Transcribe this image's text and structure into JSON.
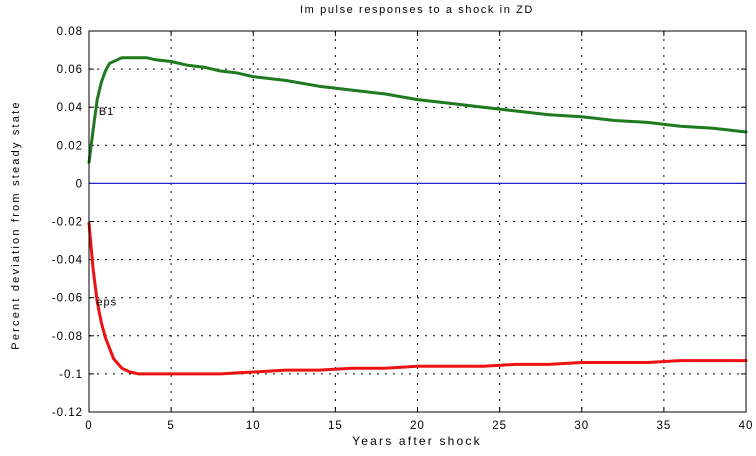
{
  "chart_data": {
    "type": "line",
    "title": "Im pulse responses to a shock in ZD",
    "xlabel": "Years after shock",
    "ylabel": "Percent deviation from steady state",
    "xlim": [
      0,
      40
    ],
    "ylim": [
      -0.12,
      0.08
    ],
    "x_ticks": [
      0,
      5,
      10,
      15,
      20,
      25,
      30,
      35,
      40
    ],
    "x_tick_labels": [
      "0",
      "5",
      "10",
      "15",
      "20",
      "25",
      "30",
      "35",
      "40"
    ],
    "y_ticks": [
      0.08,
      0.06,
      0.04,
      0.02,
      0,
      -0.02,
      -0.04,
      -0.06,
      -0.08,
      -0.1,
      -0.12
    ],
    "y_tick_labels": [
      "0.08",
      "0.06",
      "0.04",
      "0.02",
      "0",
      "-0.02",
      "-0.04",
      "-0.06",
      "-0.08",
      "-0.1",
      "-0.12"
    ],
    "grid": true,
    "colors": {
      "B1": "#1f7a1f",
      "eps": "#ee1111",
      "zero": "#2222cc",
      "grid": "#000000"
    },
    "series": [
      {
        "name": "B1",
        "x": [
          0,
          0.25,
          0.5,
          0.75,
          1,
          1.25,
          1.5,
          2,
          2.5,
          3,
          3.5,
          4,
          5,
          6,
          7,
          8,
          9,
          10,
          12,
          14,
          16,
          18,
          20,
          22,
          24,
          26,
          28,
          30,
          32,
          34,
          36,
          38,
          40
        ],
        "y": [
          0.011,
          0.028,
          0.044,
          0.053,
          0.059,
          0.063,
          0.064,
          0.066,
          0.066,
          0.066,
          0.066,
          0.065,
          0.064,
          0.062,
          0.061,
          0.059,
          0.058,
          0.056,
          0.054,
          0.051,
          0.049,
          0.047,
          0.044,
          0.042,
          0.04,
          0.038,
          0.036,
          0.035,
          0.033,
          0.032,
          0.03,
          0.029,
          0.027
        ]
      },
      {
        "name": "eps",
        "x": [
          0,
          0.25,
          0.5,
          0.75,
          1,
          1.5,
          2,
          2.5,
          3,
          3.5,
          4,
          5,
          6,
          8,
          10,
          12,
          14,
          16,
          18,
          20,
          22,
          24,
          26,
          28,
          30,
          32,
          34,
          36,
          38,
          40
        ],
        "y": [
          -0.021,
          -0.045,
          -0.062,
          -0.073,
          -0.081,
          -0.092,
          -0.097,
          -0.099,
          -0.1,
          -0.1,
          -0.1,
          -0.1,
          -0.1,
          -0.1,
          -0.099,
          -0.098,
          -0.098,
          -0.097,
          -0.097,
          -0.096,
          -0.096,
          -0.096,
          -0.095,
          -0.095,
          -0.094,
          -0.094,
          -0.094,
          -0.093,
          -0.093,
          -0.093
        ]
      },
      {
        "x": [
          0,
          40
        ],
        "y": [
          0,
          0
        ]
      }
    ],
    "annotations": [
      {
        "text": "B1",
        "x": 0.6,
        "y": 0.038
      },
      {
        "text": "eps",
        "x": 0.45,
        "y": -0.062
      }
    ]
  }
}
